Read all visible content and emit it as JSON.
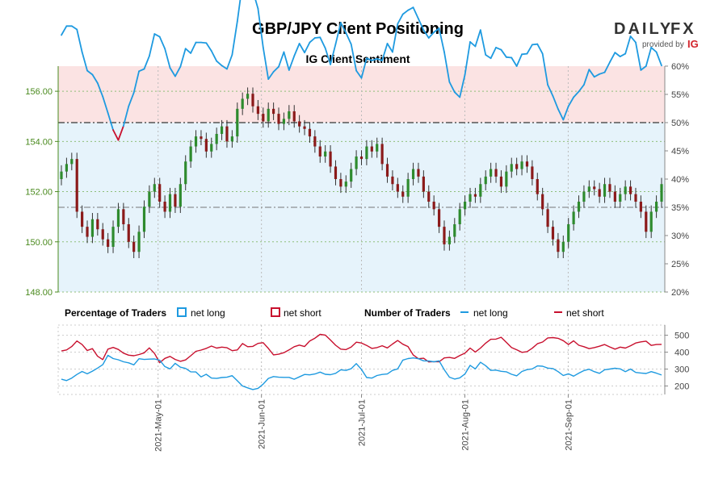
{
  "header": {
    "title": "GBP/JPY Client Positioning",
    "subtitle": "IG Client Sentiment"
  },
  "logo": {
    "brand_left": "DAILY",
    "brand_right": "FX",
    "provided_by": "provided by",
    "ig": "IG"
  },
  "legend": {
    "pct_heading": "Percentage of Traders",
    "num_heading": "Number of Traders",
    "net_long": "net long",
    "net_short": "net short"
  },
  "colors": {
    "long": "#1e9ae0",
    "short": "#c8102e",
    "bull": "#2e8b2e",
    "bear": "#8b1a1a",
    "zone_short": "#fbe3e3",
    "zone_long": "#e6f3fb",
    "price_axis": "#4a8a1e"
  },
  "chart_data": [
    {
      "type": "candlestick+line",
      "title": "IG Client Sentiment",
      "x_start": "2021-04-02",
      "x_end": "2021-09-29",
      "x_ticks": [
        "2021-May-01",
        "2021-Jun-01",
        "2021-Jul-01",
        "2021-Aug-01",
        "2021-Sep-01"
      ],
      "price_axis": {
        "ylim": [
          148,
          157
        ],
        "ticks": [
          "148.00",
          "150.00",
          "152.00",
          "154.00",
          "156.00"
        ]
      },
      "pct_axis": {
        "ylim": [
          20,
          60
        ],
        "ticks": [
          "20%",
          "25%",
          "30%",
          "35%",
          "40%",
          "45%",
          "50%",
          "55%",
          "60%"
        ]
      },
      "reference_lines": [
        {
          "label": "50%",
          "value": 50
        },
        {
          "label": "35%",
          "value": 35
        }
      ],
      "price_closes": [
        152.8,
        153.1,
        153.3,
        151.2,
        150.6,
        150.2,
        150.9,
        150.5,
        150.1,
        149.8,
        150.6,
        151.3,
        150.7,
        150.0,
        149.6,
        150.4,
        151.4,
        152.0,
        152.3,
        151.6,
        151.2,
        151.9,
        151.4,
        152.3,
        153.2,
        153.8,
        154.2,
        154.1,
        153.6,
        153.9,
        154.3,
        154.6,
        154.0,
        154.2,
        155.3,
        155.7,
        155.9,
        155.4,
        155.1,
        154.8,
        155.3,
        155.1,
        154.7,
        154.9,
        155.2,
        154.8,
        154.6,
        154.5,
        154.2,
        153.8,
        153.4,
        153.6,
        153.0,
        152.5,
        152.2,
        152.4,
        152.9,
        153.4,
        153.3,
        153.8,
        153.6,
        153.9,
        153.1,
        152.6,
        152.3,
        152.0,
        151.8,
        152.5,
        152.9,
        152.6,
        152.0,
        151.6,
        151.3,
        150.6,
        149.9,
        150.2,
        150.7,
        151.3,
        151.6,
        151.9,
        151.8,
        152.3,
        152.6,
        152.9,
        152.6,
        152.2,
        152.8,
        153.1,
        152.9,
        153.2,
        153.0,
        152.5,
        151.9,
        151.3,
        150.6,
        150.1,
        149.6,
        150.0,
        150.7,
        151.2,
        151.6,
        152.0,
        152.2,
        152.1,
        151.8,
        152.3,
        152.0,
        151.6,
        151.9,
        152.2,
        151.9,
        151.6,
        151.2,
        150.4,
        151.2,
        151.6,
        152.3
      ],
      "pct_net_long": [
        65.5,
        67.1,
        67.1,
        66.5,
        62.5,
        59.2,
        58.5,
        57.0,
        54.6,
        51.7,
        48.7,
        46.9,
        49.4,
        52.9,
        55.3,
        59.1,
        59.5,
        61.8,
        65.7,
        65.2,
        63.1,
        59.7,
        58.2,
        59.9,
        63.1,
        62.3,
        64.2,
        64.2,
        64.1,
        62.7,
        60.9,
        60.1,
        59.5,
        62.0,
        67.9,
        74.7,
        75.1,
        73.4,
        70.2,
        63.3,
        57.7,
        59.0,
        59.9,
        62.5,
        59.3,
        61.8,
        64.0,
        62.4,
        64.2,
        65.0,
        65.1,
        63.2,
        60.3,
        63.9,
        67.7,
        65.9,
        63.9,
        59.2,
        57.9,
        61.4,
        61.0,
        61.3,
        61.0,
        64.0,
        62.5,
        67.5,
        69.2,
        69.9,
        70.4,
        68.4,
        66.4,
        65.0,
        66.0,
        66.7,
        62.5,
        57.2,
        55.4,
        54.5,
        58.5,
        64.3,
        63.5,
        66.4,
        62.0,
        61.4,
        63.3,
        62.9,
        61.6,
        61.5,
        60.0,
        62.1,
        62.2,
        63.8,
        63.9,
        62.2,
        56.7,
        54.7,
        52.4,
        50.5,
        52.9,
        54.5,
        55.5,
        56.7,
        59.4,
        58.1,
        58.6,
        58.9,
        60.7,
        62.4,
        61.7,
        62.2,
        65.3,
        64.2,
        59.3,
        60.0,
        63.3,
        62.5,
        60.1
      ],
      "net_long_traders": [
        240,
        232,
        247,
        268,
        286,
        272,
        288,
        306,
        326,
        381,
        362,
        355,
        343,
        337,
        325,
        361,
        357,
        359,
        360,
        352,
        315,
        301,
        334,
        311,
        304,
        284,
        283,
        254,
        269,
        247,
        245,
        250,
        252,
        261,
        231,
        200,
        189,
        179,
        186,
        211,
        245,
        256,
        252,
        251,
        251,
        240,
        254,
        268,
        266,
        271,
        282,
        269,
        267,
        275,
        296,
        292,
        302,
        332,
        298,
        250,
        247,
        262,
        268,
        271,
        292,
        301,
        353,
        362,
        366,
        361,
        349,
        348,
        343,
        349,
        296,
        252,
        241,
        248,
        271,
        322,
        301,
        340,
        320,
        292,
        294,
        287,
        284,
        269,
        260,
        286,
        297,
        301,
        319,
        317,
        306,
        303,
        285,
        262,
        272,
        258,
        276,
        291,
        299,
        285,
        275,
        296,
        300,
        305,
        301,
        285,
        300,
        280,
        277,
        274,
        285,
        276,
        265
      ],
      "net_short_traders": [
        407,
        413,
        433,
        466,
        445,
        410,
        421,
        376,
        356,
        418,
        428,
        416,
        394,
        382,
        379,
        386,
        396,
        425,
        392,
        338,
        363,
        375,
        357,
        346,
        354,
        379,
        405,
        412,
        422,
        436,
        424,
        430,
        426,
        409,
        413,
        451,
        432,
        434,
        452,
        456,
        422,
        384,
        388,
        397,
        413,
        432,
        442,
        433,
        466,
        483,
        505,
        501,
        472,
        441,
        418,
        415,
        430,
        459,
        454,
        440,
        422,
        427,
        438,
        425,
        448,
        469,
        447,
        433,
        383,
        361,
        364,
        342,
        344,
        343,
        366,
        369,
        363,
        380,
        394,
        424,
        401,
        424,
        453,
        476,
        477,
        488,
        458,
        427,
        414,
        399,
        403,
        423,
        450,
        460,
        484,
        486,
        482,
        468,
        445,
        467,
        441,
        432,
        421,
        427,
        435,
        445,
        431,
        418,
        430,
        424,
        438,
        454,
        461,
        465,
        440,
        445,
        446
      ]
    }
  ]
}
